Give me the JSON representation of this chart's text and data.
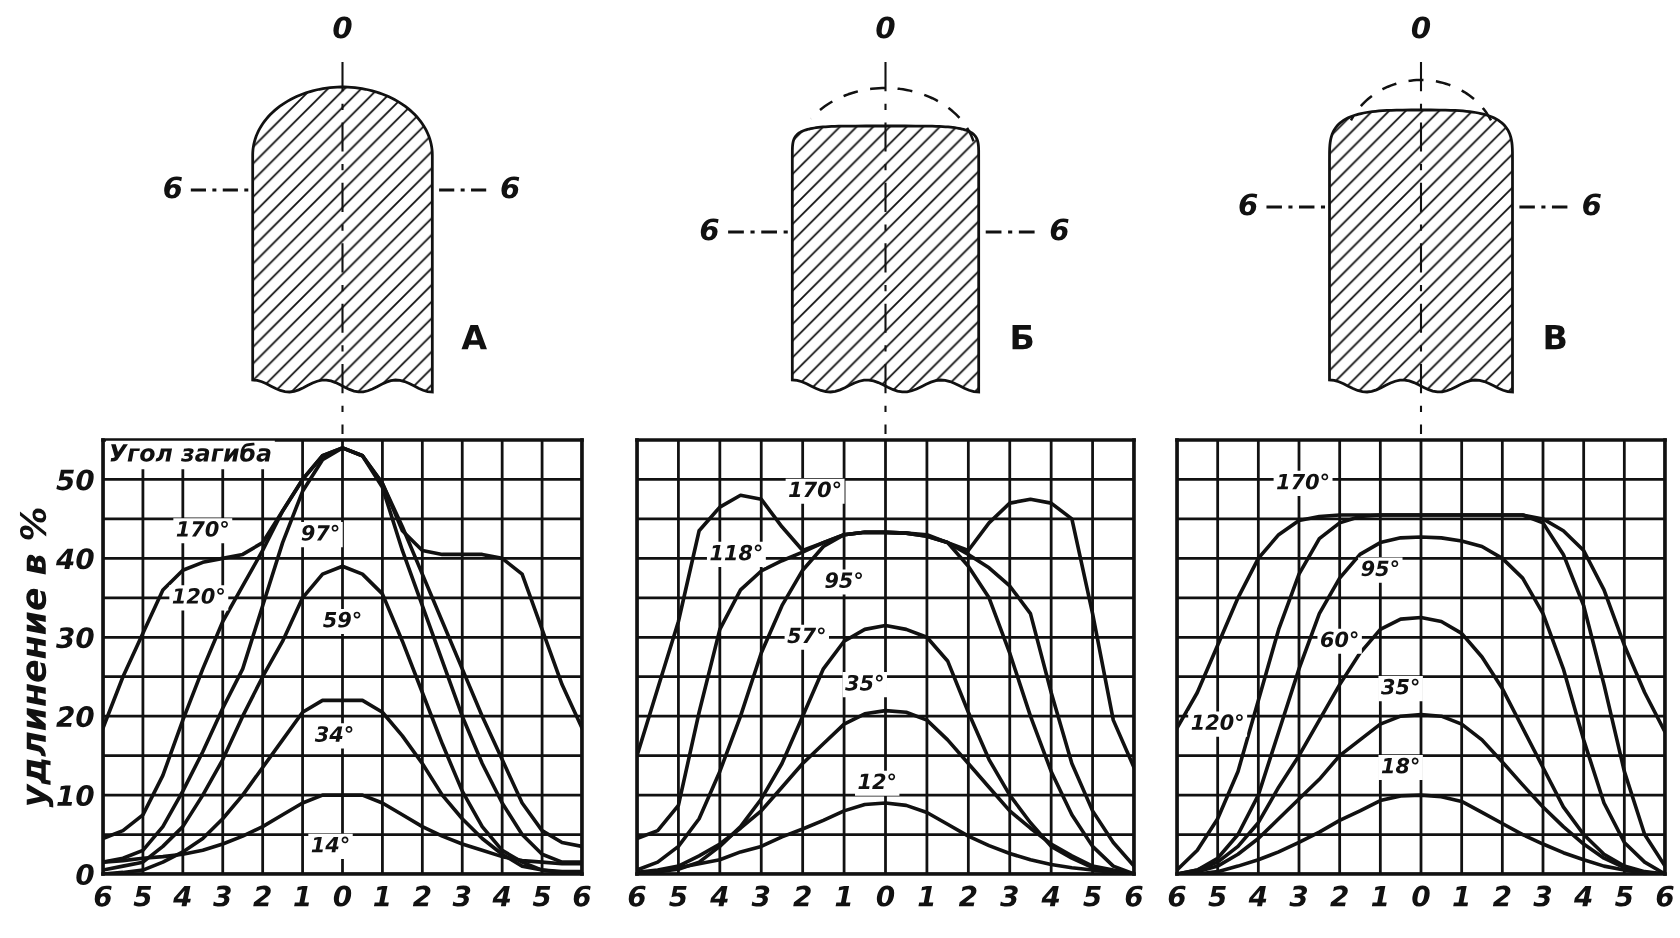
{
  "chart_data": [
    {
      "type": "line",
      "title": "А",
      "ylabel": "удлинение в %",
      "legend_title": "Угол загиба",
      "annotations": [
        "0",
        "6",
        "6"
      ],
      "x": [
        -6,
        -5.5,
        -5,
        -4.5,
        -4,
        -3.5,
        -3,
        -2.5,
        -2,
        -1.5,
        -1,
        -0.5,
        0,
        0.5,
        1,
        1.5,
        2,
        2.5,
        3,
        3.5,
        4,
        4.5,
        5,
        5.5,
        6
      ],
      "xlim": [
        -6,
        6
      ],
      "ylim": [
        0,
        55
      ],
      "xticks": [
        {
          "value": -6,
          "label": "6"
        },
        {
          "value": -5,
          "label": "5"
        },
        {
          "value": -4,
          "label": "4"
        },
        {
          "value": -3,
          "label": "3"
        },
        {
          "value": -2,
          "label": "2"
        },
        {
          "value": -1,
          "label": "1"
        },
        0,
        1,
        2,
        3,
        4,
        5,
        6
      ],
      "yticks": [
        0,
        {
          "value": 5,
          "label": null
        },
        10,
        {
          "value": 15,
          "label": null
        },
        20,
        {
          "value": 25,
          "label": null
        },
        30,
        {
          "value": 35,
          "label": null
        },
        40,
        {
          "value": 45,
          "label": null
        },
        50
      ],
      "grid": true,
      "series": [
        {
          "name": "170°",
          "color": "#111111",
          "values": [
            18.5,
            25,
            30.5,
            36,
            38.5,
            39.5,
            40,
            40.5,
            42,
            46,
            50,
            53,
            54,
            53,
            49.5,
            43.5,
            41,
            40.5,
            40.5,
            40.5,
            40,
            38,
            31,
            24,
            18.5
          ]
        },
        {
          "name": "120°",
          "color": "#111111",
          "values": [
            4.5,
            5.5,
            7.5,
            12.5,
            19.5,
            26,
            32,
            36.5,
            41,
            46,
            50,
            53,
            54,
            53,
            49.5,
            44,
            38,
            32,
            26,
            20,
            14.5,
            9,
            5.5,
            4,
            3.5
          ]
        },
        {
          "name": "97°",
          "color": "#111111",
          "values": [
            1.5,
            2,
            3,
            6,
            10.5,
            15.5,
            21,
            26,
            34,
            42,
            48.5,
            52.5,
            54,
            53,
            49,
            41,
            34,
            27,
            20,
            14,
            9,
            5,
            2.5,
            1.5,
            1.5
          ]
        },
        {
          "name": "59°",
          "color": "#111111",
          "values": [
            0.5,
            1,
            1.5,
            3.5,
            6,
            10,
            14.5,
            20,
            25,
            29.5,
            35,
            38,
            39,
            38,
            35.5,
            29.5,
            23,
            16.5,
            10.5,
            6,
            3,
            1.5,
            0.5,
            0.3,
            0.3
          ]
        },
        {
          "name": "34°",
          "color": "#111111",
          "values": [
            0,
            0.2,
            0.5,
            1.5,
            2.8,
            4.5,
            7,
            10,
            13.5,
            17,
            20.5,
            22,
            22,
            22,
            20.5,
            17.5,
            14,
            10,
            7,
            4.5,
            2.5,
            1,
            0.5,
            0.2,
            0
          ]
        },
        {
          "name": "14°",
          "color": "#111111",
          "values": [
            1.5,
            1.7,
            2,
            2.2,
            2.5,
            3,
            3.8,
            4.8,
            6,
            7.5,
            9,
            10,
            10,
            10,
            9,
            7.5,
            6,
            4.8,
            3.8,
            3,
            2.2,
            1.7,
            1.5,
            1.3,
            1.3
          ]
        }
      ]
    },
    {
      "type": "line",
      "title": "Б",
      "annotations": [
        "0",
        "6",
        "6"
      ],
      "tick_labels": "x",
      "x": [
        -6,
        -5.5,
        -5,
        -4.5,
        -4,
        -3.5,
        -3,
        -2.5,
        -2,
        -1.5,
        -1,
        -0.5,
        0,
        0.5,
        1,
        1.5,
        2,
        2.5,
        3,
        3.5,
        4,
        4.5,
        5,
        5.5,
        6
      ],
      "xlim": [
        -6,
        6
      ],
      "ylim": [
        0,
        55
      ],
      "xticks": [
        {
          "value": -6,
          "label": "6"
        },
        {
          "value": -5,
          "label": "5"
        },
        {
          "value": -4,
          "label": "4"
        },
        {
          "value": -3,
          "label": "3"
        },
        {
          "value": -2,
          "label": "2"
        },
        {
          "value": -1,
          "label": "1"
        },
        0,
        1,
        2,
        3,
        4,
        5,
        6
      ],
      "yticks": [
        0,
        5,
        10,
        15,
        20,
        25,
        30,
        35,
        40,
        45,
        50
      ],
      "grid": true,
      "series": [
        {
          "name": "170°",
          "color": "#111111",
          "values": [
            15,
            23.5,
            32,
            43.5,
            46.5,
            48,
            47.5,
            44,
            41,
            42,
            43,
            43.3,
            43.3,
            43.2,
            42.8,
            42,
            41,
            44.5,
            47,
            47.5,
            47,
            45,
            33,
            19.5,
            13.5
          ]
        },
        {
          "name": "118°",
          "color": "#111111",
          "values": [
            4.5,
            5.5,
            8.7,
            20.5,
            31,
            36,
            38.4,
            39.7,
            40.8,
            42,
            43,
            43.3,
            43.3,
            43.2,
            42.8,
            42,
            40.5,
            38.8,
            36.5,
            33,
            23,
            14,
            8,
            4,
            1
          ]
        },
        {
          "name": "95°",
          "color": "#111111",
          "values": [
            0.5,
            1.5,
            3.5,
            7,
            13,
            20,
            28,
            34,
            38.5,
            41.5,
            43,
            43.3,
            43.3,
            43.2,
            43,
            42,
            39,
            35,
            28,
            20,
            13,
            7.5,
            3.5,
            1,
            0
          ]
        },
        {
          "name": "57°",
          "color": "#111111",
          "values": [
            0,
            0.3,
            0.6,
            1.5,
            3.5,
            6,
            9.5,
            14,
            20,
            26,
            29.5,
            31,
            31.5,
            31,
            30,
            27,
            20.5,
            14.5,
            10,
            6.5,
            3.5,
            2,
            0.8,
            0.3,
            0
          ]
        },
        {
          "name": "35°",
          "color": "#111111",
          "values": [
            0.2,
            0.5,
            1,
            2.3,
            3.8,
            5.8,
            8,
            11,
            14,
            16.5,
            19,
            20.3,
            20.7,
            20.5,
            19.5,
            17,
            14,
            11,
            8,
            5.8,
            3.8,
            2.3,
            1,
            0.5,
            0
          ]
        },
        {
          "name": "12°",
          "color": "#111111",
          "values": [
            0,
            0.3,
            0.8,
            1.3,
            1.8,
            2.8,
            3.5,
            4.7,
            5.7,
            6.8,
            8,
            8.8,
            9,
            8.7,
            7.8,
            6.3,
            4.8,
            3.6,
            2.6,
            1.8,
            1.2,
            0.8,
            0.5,
            0.2,
            0
          ]
        }
      ]
    },
    {
      "type": "line",
      "title": "В",
      "annotations": [
        "0",
        "6",
        "6"
      ],
      "tick_labels": "x",
      "x": [
        -6,
        -5.5,
        -5,
        -4.5,
        -4,
        -3.5,
        -3,
        -2.5,
        -2,
        -1.5,
        -1,
        -0.5,
        0,
        0.5,
        1,
        1.5,
        2,
        2.5,
        3,
        3.5,
        4,
        4.5,
        5,
        5.5,
        6
      ],
      "xlim": [
        -6,
        6
      ],
      "ylim": [
        0,
        55
      ],
      "xticks": [
        {
          "value": -6,
          "label": "6"
        },
        {
          "value": -5,
          "label": "5"
        },
        {
          "value": -4,
          "label": "4"
        },
        {
          "value": -3,
          "label": "3"
        },
        {
          "value": -2,
          "label": "2"
        },
        {
          "value": -1,
          "label": "1"
        },
        0,
        1,
        2,
        3,
        4,
        5,
        6
      ],
      "yticks": [
        0,
        5,
        10,
        15,
        20,
        25,
        30,
        35,
        40,
        45,
        50
      ],
      "grid": true,
      "series": [
        {
          "name": "170°",
          "color": "#111111",
          "values": [
            18.5,
            23,
            29,
            35,
            40,
            43,
            44.8,
            45.3,
            45.5,
            45.5,
            45.5,
            45.5,
            45.5,
            45.5,
            45.5,
            45.5,
            45.5,
            45.5,
            45,
            43.5,
            41,
            36,
            29,
            23,
            18
          ]
        },
        {
          "name": "120°",
          "color": "#111111",
          "values": [
            0.5,
            3,
            7,
            13,
            22,
            31,
            38,
            42.5,
            44.5,
            45.3,
            45.5,
            45.5,
            45.5,
            45.5,
            45.5,
            45.5,
            45.5,
            45.5,
            44.5,
            40.5,
            34,
            24,
            13,
            5,
            1
          ]
        },
        {
          "name": "95°",
          "color": "#111111",
          "values": [
            0,
            0.5,
            2,
            5,
            10,
            18,
            26,
            33,
            37.5,
            40.5,
            42,
            42.6,
            42.7,
            42.6,
            42.2,
            41.5,
            40,
            37.5,
            33,
            26,
            17,
            9,
            4,
            1.5,
            0
          ]
        },
        {
          "name": "60°",
          "color": "#111111",
          "values": [
            0,
            0.5,
            1.5,
            3.5,
            6.5,
            11,
            15,
            19.5,
            24,
            28,
            31,
            32.3,
            32.5,
            32,
            30.5,
            27.5,
            23.5,
            18.5,
            13.5,
            8.5,
            5,
            2.5,
            1,
            0.3,
            0
          ]
        },
        {
          "name": "35°",
          "color": "#111111",
          "values": [
            0,
            0.3,
            1,
            2.5,
            4.5,
            7,
            9.5,
            12,
            15,
            17,
            19,
            20,
            20.2,
            20,
            19,
            17,
            14.2,
            11.3,
            8.5,
            6,
            3.8,
            2,
            0.8,
            0.2,
            0
          ]
        },
        {
          "name": "18°",
          "color": "#111111",
          "values": [
            0,
            0,
            0.3,
            1,
            1.8,
            2.8,
            4,
            5.3,
            6.8,
            8,
            9.3,
            9.9,
            10,
            9.8,
            9.2,
            7.8,
            6.4,
            5,
            3.8,
            2.7,
            1.8,
            1,
            0.5,
            0.1,
            0
          ]
        }
      ]
    }
  ]
}
